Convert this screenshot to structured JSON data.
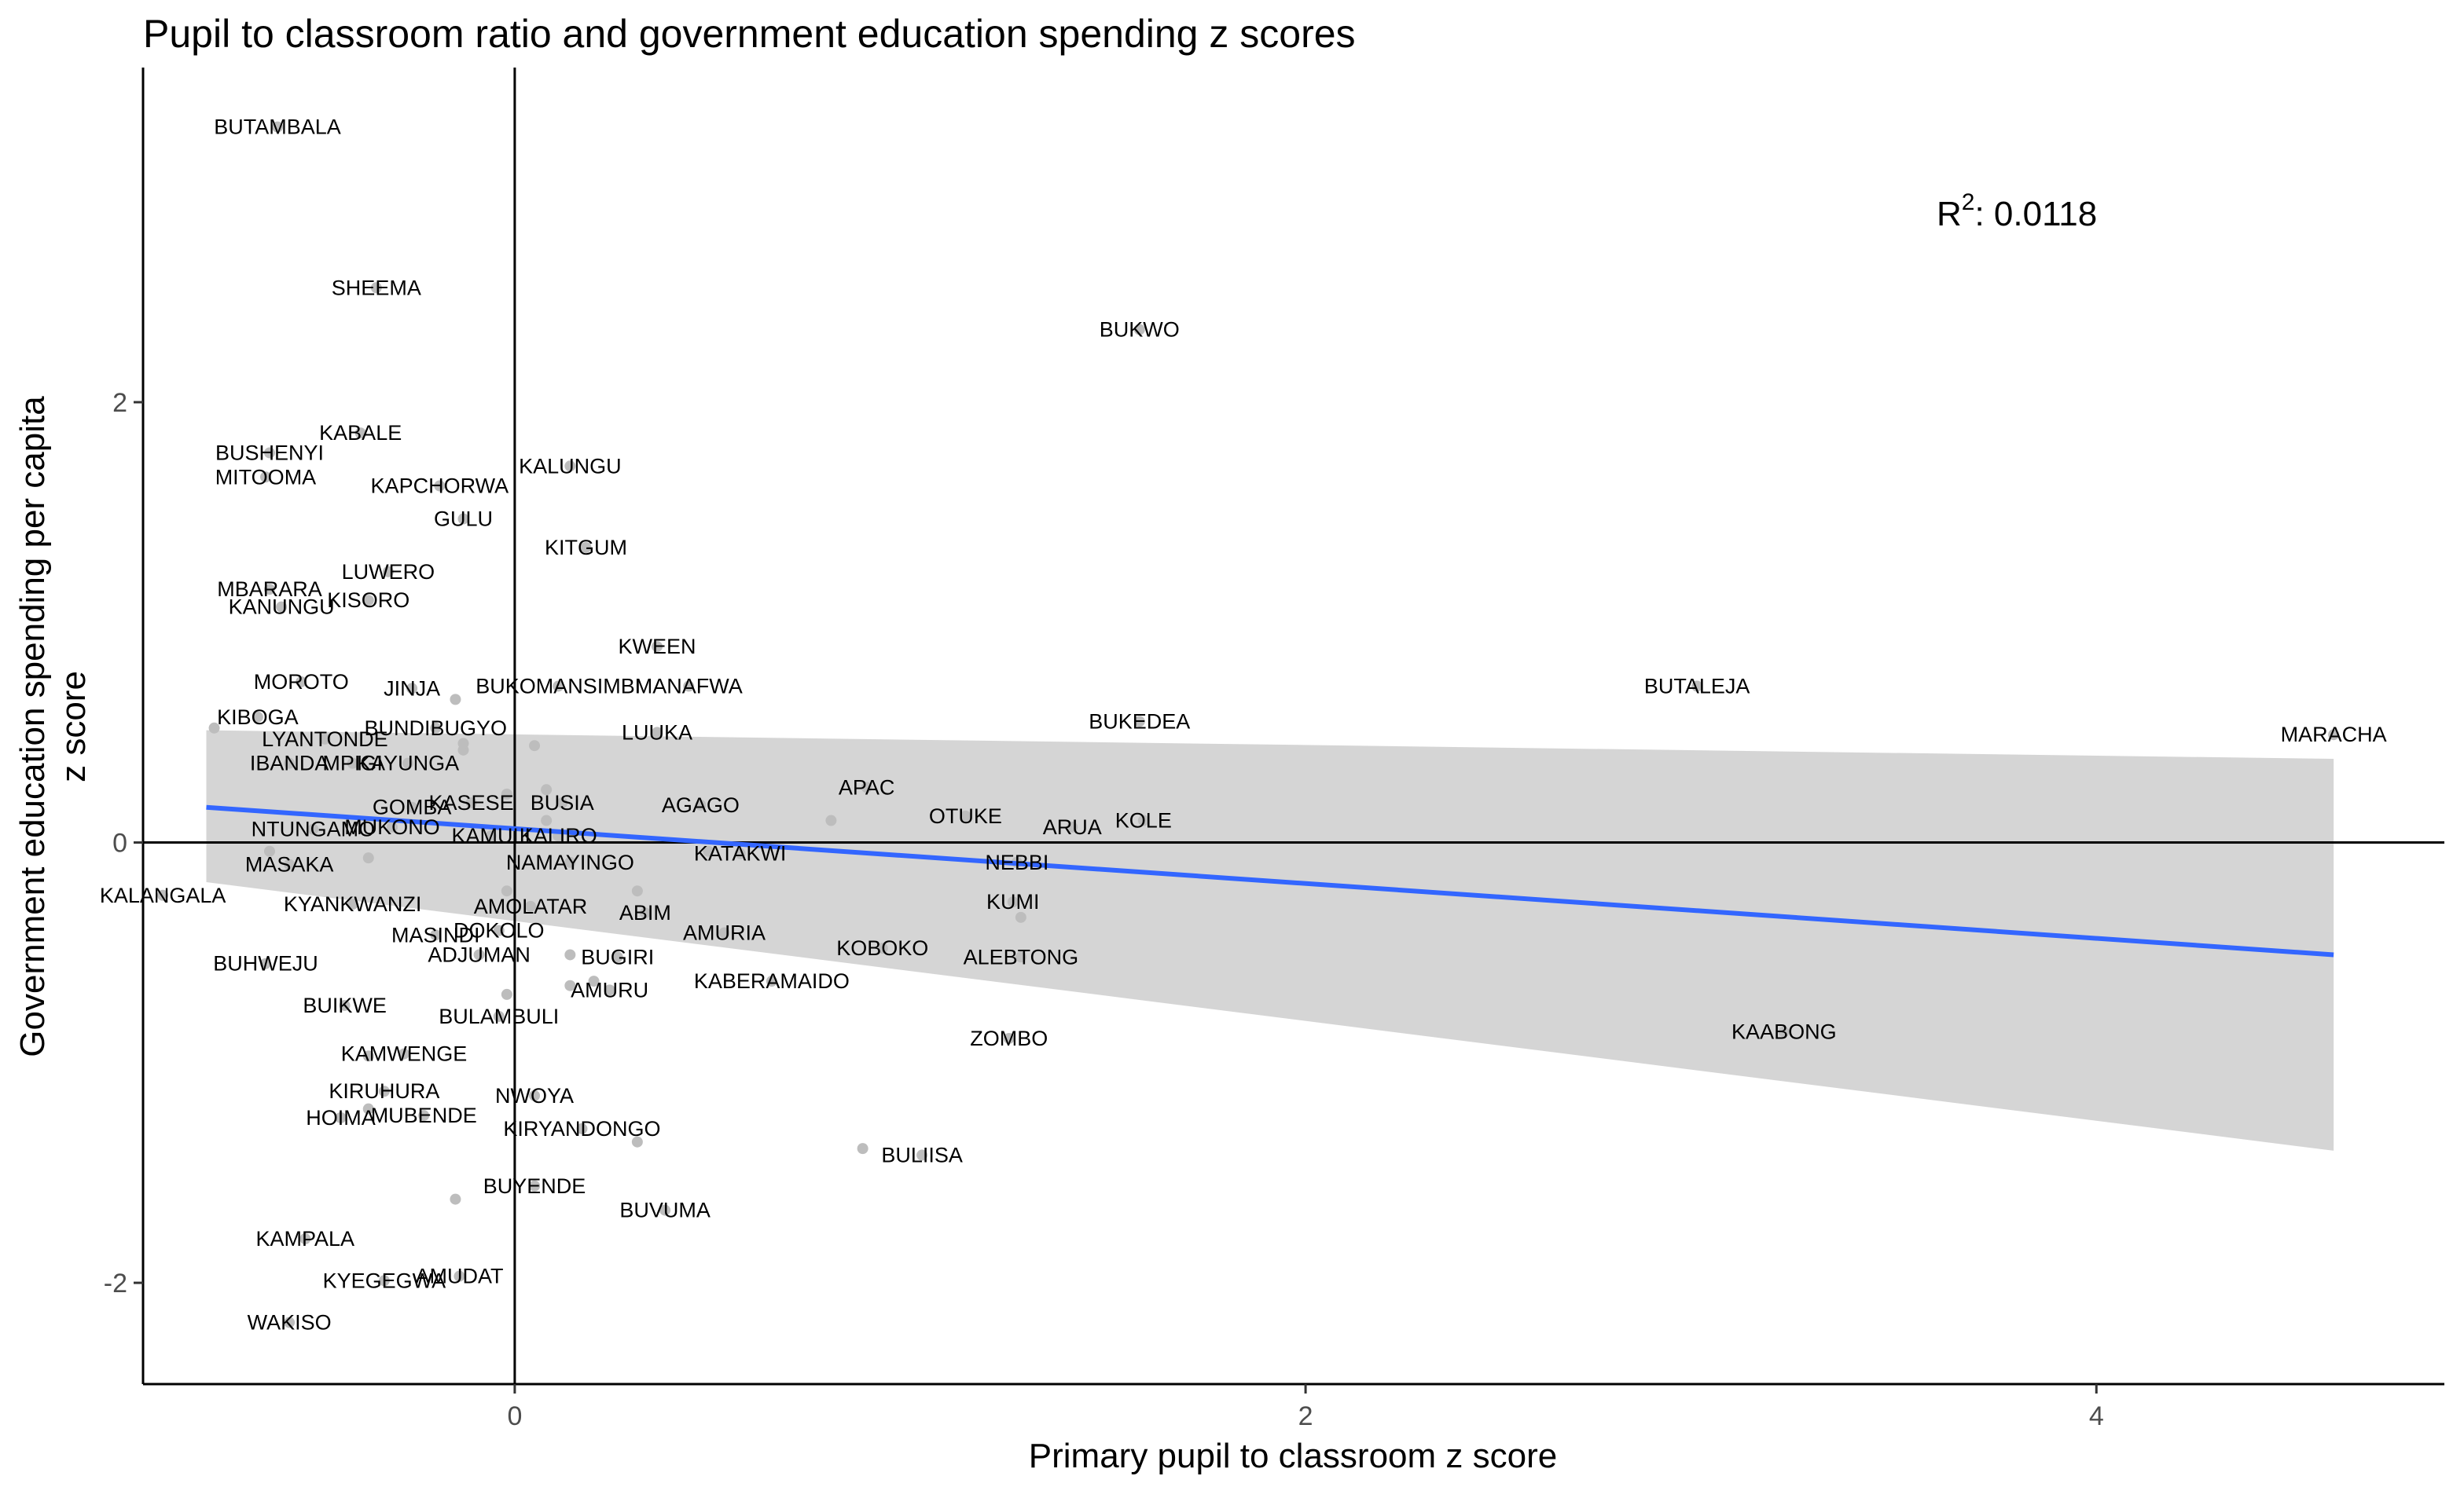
{
  "chart_data": {
    "type": "scatter",
    "title": "Pupil to classroom ratio and government education spending z scores",
    "xlabel": "Primary pupil to classroom z score",
    "ylabel_lines": [
      "Government education spending per capita",
      "z score"
    ],
    "xlim": [
      -0.94,
      4.88
    ],
    "ylim": [
      -2.46,
      3.52
    ],
    "xticks": [
      0,
      2,
      4
    ],
    "yticks": [
      -2,
      0,
      2
    ],
    "xtick_labels": [
      "0",
      "2",
      "4"
    ],
    "ytick_labels": [
      "-2",
      "0",
      "2"
    ],
    "grid": false,
    "reference_lines": {
      "x": 0,
      "y": 0
    },
    "annotation": {
      "base": "R",
      "superscript": "2",
      "text": ": 0.0118"
    },
    "colors": {
      "points": "#bdbdbd",
      "fit_line": "#3366ff",
      "band": "#d3d3d3",
      "axis": "#000000",
      "tick_text": "#4d4d4d"
    },
    "fit": {
      "x": [
        -0.78,
        4.6
      ],
      "y": [
        0.16,
        -0.51
      ],
      "ci_upper": [
        0.51,
        0.38
      ],
      "ci_lower": [
        -0.18,
        -1.4
      ]
    },
    "points": [
      {
        "label": "BUTAMBALA",
        "x": -0.6,
        "y": 3.25
      },
      {
        "label": "SHEEMA",
        "x": -0.35,
        "y": 2.52
      },
      {
        "label": "BUKWO",
        "x": 1.58,
        "y": 2.33
      },
      {
        "label": "BUSHENYI",
        "x": -0.62,
        "y": 1.77
      },
      {
        "label": "MITOOMA",
        "x": -0.63,
        "y": 1.66
      },
      {
        "label": "KABALE",
        "x": -0.39,
        "y": 1.86
      },
      {
        "label": "KALUNGU",
        "x": 0.14,
        "y": 1.71
      },
      {
        "label": "KAPCHORWA",
        "x": -0.19,
        "y": 1.62
      },
      {
        "label": "GULU",
        "x": -0.13,
        "y": 1.47
      },
      {
        "label": "KITGUM",
        "x": 0.18,
        "y": 1.34
      },
      {
        "label": "LUWERO",
        "x": -0.32,
        "y": 1.23
      },
      {
        "label": "MBARARA",
        "x": -0.62,
        "y": 1.15
      },
      {
        "label": "KANUNGU",
        "x": -0.59,
        "y": 1.07
      },
      {
        "label": "KISORO",
        "x": -0.37,
        "y": 1.1
      },
      {
        "label": "KWEEN",
        "x": 0.36,
        "y": 0.89
      },
      {
        "label": "MOROTO",
        "x": -0.54,
        "y": 0.73
      },
      {
        "label": "JINJA",
        "x": -0.26,
        "y": 0.7
      },
      {
        "label": "BUKOMANSIMBI",
        "x": 0.11,
        "y": 0.71
      },
      {
        "label": "MANAFWA",
        "x": 0.44,
        "y": 0.71
      },
      {
        "label": "BUTALEJA",
        "x": 2.99,
        "y": 0.71
      },
      {
        "label": "KIBOGA",
        "x": -0.65,
        "y": 0.57
      },
      {
        "label": "BUNDIBUGYO",
        "x": -0.2,
        "y": 0.52
      },
      {
        "label": "BUKEDEA",
        "x": 1.58,
        "y": 0.55
      },
      {
        "label": "MARACHA",
        "x": 4.6,
        "y": 0.49
      },
      {
        "label": "LUUKA",
        "x": 0.36,
        "y": 0.5
      },
      {
        "label": "LYANTONDE",
        "x": -0.48,
        "y": 0.47
      },
      {
        "label": "IBANDA",
        "x": -0.57,
        "y": 0.36
      },
      {
        "label": "MPIGI",
        "x": -0.41,
        "y": 0.36
      },
      {
        "label": "KAYUNGA",
        "x": -0.27,
        "y": 0.36
      },
      {
        "label": "APAC",
        "x": 0.89,
        "y": 0.25
      },
      {
        "label": "GOMBA",
        "x": -0.26,
        "y": 0.16
      },
      {
        "label": "KASESE",
        "x": -0.11,
        "y": 0.18
      },
      {
        "label": "BUSIA",
        "x": 0.12,
        "y": 0.18
      },
      {
        "label": "AGAGO",
        "x": 0.47,
        "y": 0.17
      },
      {
        "label": "OTUKE",
        "x": 1.14,
        "y": 0.12
      },
      {
        "label": "ARUA",
        "x": 1.41,
        "y": 0.07
      },
      {
        "label": "KOLE",
        "x": 1.59,
        "y": 0.1
      },
      {
        "label": "NTUNGAMO",
        "x": -0.51,
        "y": 0.06
      },
      {
        "label": "MUKONO",
        "x": -0.31,
        "y": 0.07
      },
      {
        "label": "KAMULI",
        "x": -0.06,
        "y": 0.03
      },
      {
        "label": "KALIRO",
        "x": 0.11,
        "y": 0.03
      },
      {
        "label": "KATAKWI",
        "x": 0.57,
        "y": -0.05
      },
      {
        "label": "MASAKA",
        "x": -0.57,
        "y": -0.1
      },
      {
        "label": "NAMAYINGO",
        "x": 0.14,
        "y": -0.09
      },
      {
        "label": "NEBBI",
        "x": 1.27,
        "y": -0.09
      },
      {
        "label": "KALANGALA",
        "x": -0.89,
        "y": -0.24
      },
      {
        "label": "KYANKWANZI",
        "x": -0.41,
        "y": -0.28
      },
      {
        "label": "AMOLATAR",
        "x": 0.04,
        "y": -0.29
      },
      {
        "label": "ABIM",
        "x": 0.33,
        "y": -0.32
      },
      {
        "label": "KUMI",
        "x": 1.26,
        "y": -0.27
      },
      {
        "label": "MASINDI",
        "x": -0.2,
        "y": -0.42
      },
      {
        "label": "DOKOLO",
        "x": -0.04,
        "y": -0.4
      },
      {
        "label": "AMURIA",
        "x": 0.53,
        "y": -0.41
      },
      {
        "label": "ADJUMAN",
        "x": -0.09,
        "y": -0.51
      },
      {
        "label": "BUGIRI",
        "x": 0.26,
        "y": -0.52
      },
      {
        "label": "KOBOKO",
        "x": 0.93,
        "y": -0.48
      },
      {
        "label": "ALEBTONG",
        "x": 1.28,
        "y": -0.52
      },
      {
        "label": "BUHWEJU",
        "x": -0.63,
        "y": -0.55
      },
      {
        "label": "KABERAMAIDO",
        "x": 0.65,
        "y": -0.63
      },
      {
        "label": "AMURU",
        "x": 0.24,
        "y": -0.67
      },
      {
        "label": "BUIKWE",
        "x": -0.43,
        "y": -0.74
      },
      {
        "label": "BULAMBULI",
        "x": -0.04,
        "y": -0.79
      },
      {
        "label": "ZOMBO",
        "x": 1.25,
        "y": -0.89
      },
      {
        "label": "KAABONG",
        "x": 3.21,
        "y": -0.86
      },
      {
        "label": "KAMWENGE",
        "x": -0.28,
        "y": -0.96
      },
      {
        "label": "KIRUHURA",
        "x": -0.33,
        "y": -1.13
      },
      {
        "label": "NWOYA",
        "x": 0.05,
        "y": -1.15
      },
      {
        "label": "HOIMA",
        "x": -0.44,
        "y": -1.25
      },
      {
        "label": "MUBENDE",
        "x": -0.23,
        "y": -1.24
      },
      {
        "label": "KIRYANDONGO",
        "x": 0.17,
        "y": -1.3
      },
      {
        "label": "BULIISA",
        "x": 1.03,
        "y": -1.42
      },
      {
        "label": "BUYENDE",
        "x": 0.05,
        "y": -1.56
      },
      {
        "label": "BUVUMA",
        "x": 0.38,
        "y": -1.67
      },
      {
        "label": "KAMPALA",
        "x": -0.53,
        "y": -1.8
      },
      {
        "label": "KYEGEGWA",
        "x": -0.33,
        "y": -1.99
      },
      {
        "label": "AMUDAT",
        "x": -0.14,
        "y": -1.97
      },
      {
        "label": "WAKISO",
        "x": -0.57,
        "y": -2.18
      }
    ],
    "unlabeled_points": [
      {
        "x": -0.76,
        "y": 0.52
      },
      {
        "x": -0.62,
        "y": -0.04
      },
      {
        "x": -0.37,
        "y": -0.07
      },
      {
        "x": -0.37,
        "y": -0.97
      },
      {
        "x": -0.37,
        "y": -1.21
      },
      {
        "x": -0.15,
        "y": 0.65
      },
      {
        "x": -0.13,
        "y": 0.42
      },
      {
        "x": -0.13,
        "y": 0.45
      },
      {
        "x": -0.02,
        "y": 0.22
      },
      {
        "x": -0.02,
        "y": -0.22
      },
      {
        "x": -0.02,
        "y": -0.69
      },
      {
        "x": -0.15,
        "y": -1.62
      },
      {
        "x": 0.05,
        "y": 0.44
      },
      {
        "x": 0.08,
        "y": 0.1
      },
      {
        "x": 0.08,
        "y": 0.24
      },
      {
        "x": 0.14,
        "y": -0.65
      },
      {
        "x": 0.14,
        "y": -0.51
      },
      {
        "x": 0.2,
        "y": -0.63
      },
      {
        "x": 0.31,
        "y": -0.22
      },
      {
        "x": 0.31,
        "y": -1.36
      },
      {
        "x": 0.49,
        "y": -0.04
      },
      {
        "x": 0.8,
        "y": 0.1
      },
      {
        "x": 0.88,
        "y": -1.39
      },
      {
        "x": 1.28,
        "y": -0.34
      }
    ]
  }
}
